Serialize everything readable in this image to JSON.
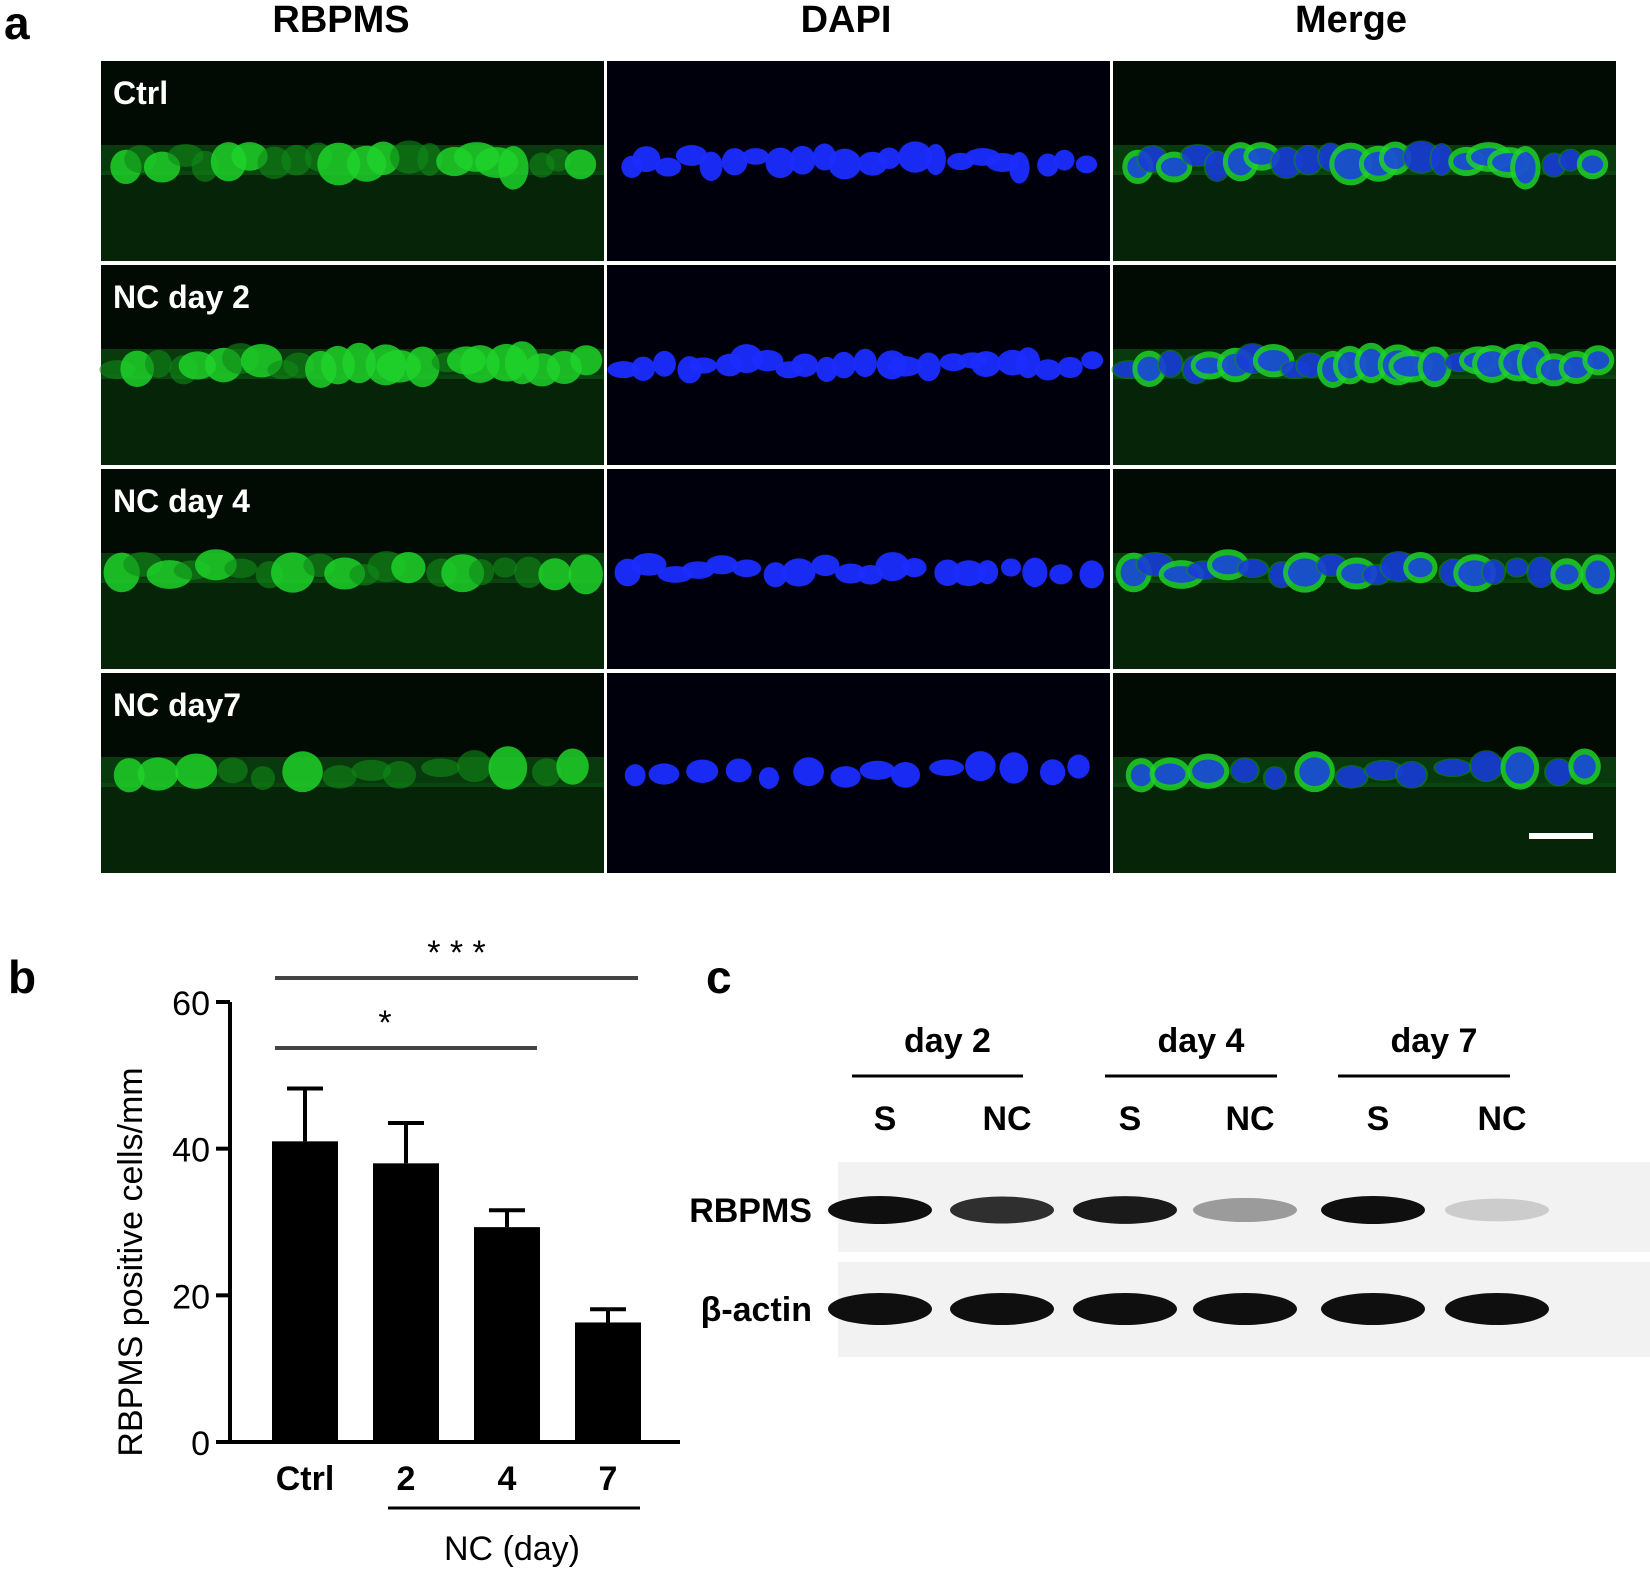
{
  "panel_a": {
    "letter": "a",
    "columns": [
      "RBPMS",
      "DAPI",
      "Merge"
    ],
    "rows": [
      "Ctrl",
      "NC day 2",
      "NC day 4",
      "NC day7"
    ],
    "colors": {
      "green": "#1fd12a",
      "blue": "#1a2cff",
      "background": "#020b03"
    }
  },
  "panel_b": {
    "letter": "b",
    "chart_data": {
      "type": "bar",
      "categories": [
        "Ctrl",
        "2",
        "4",
        "7"
      ],
      "values": [
        41,
        38,
        29.3,
        16.3
      ],
      "errors": [
        7.2,
        5.5,
        2.3,
        1.8
      ],
      "ylabel": "RBPMS positive cells/mm",
      "xlabel": "NC (day)",
      "ylim": [
        0,
        60
      ],
      "yticks": [
        0,
        20,
        40,
        60
      ],
      "significance": [
        {
          "from": "Ctrl",
          "to": "4",
          "label": "*"
        },
        {
          "from": "Ctrl",
          "to": "7",
          "label": "* * *"
        }
      ],
      "bar_color": "#000000"
    }
  },
  "panel_c": {
    "letter": "c",
    "days": [
      "day 2",
      "day 4",
      "day 7"
    ],
    "lanes": [
      "S",
      "NC",
      "S",
      "NC",
      "S",
      "NC"
    ],
    "bands": [
      {
        "label": "RBPMS",
        "intensity": [
          1.0,
          0.85,
          0.95,
          0.35,
          1.0,
          0.12
        ]
      },
      {
        "label": "β-actin",
        "intensity": [
          1.0,
          1.0,
          1.0,
          1.0,
          1.0,
          1.0
        ]
      }
    ]
  }
}
